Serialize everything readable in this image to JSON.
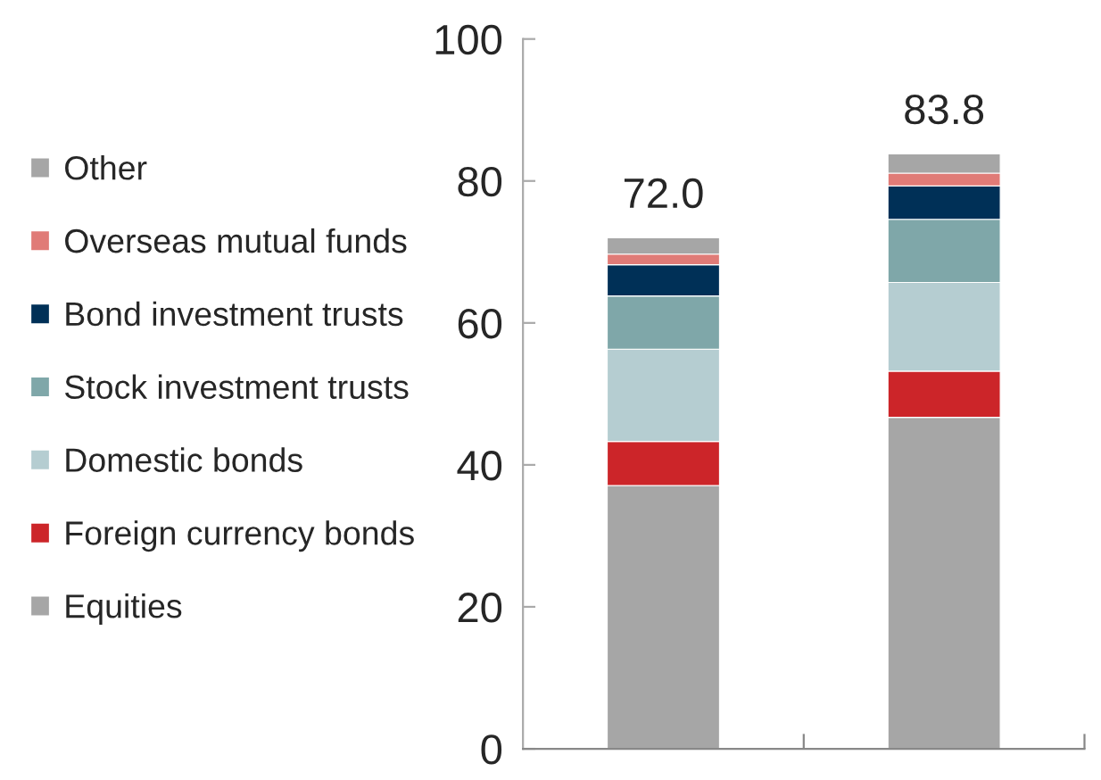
{
  "chart_data": {
    "type": "bar",
    "stacked": true,
    "categories": [
      null,
      null
    ],
    "series": [
      {
        "name": "Equities",
        "color": "#a6a6a6",
        "values": [
          37.1,
          46.7
        ]
      },
      {
        "name": "Foreign currency bonds",
        "color": "#cc2529",
        "values": [
          6.2,
          6.5
        ]
      },
      {
        "name": "Domestic bonds",
        "color": "#b5cdd1",
        "values": [
          13.0,
          12.5
        ]
      },
      {
        "name": "Stock investment trusts",
        "color": "#7fa7a9",
        "values": [
          7.5,
          8.9
        ]
      },
      {
        "name": "Bond investment trusts",
        "color": "#003057",
        "values": [
          4.4,
          4.7
        ]
      },
      {
        "name": "Overseas mutual funds",
        "color": "#e07b77",
        "values": [
          1.5,
          1.8
        ]
      },
      {
        "name": "Other",
        "color": "#a6a6a6",
        "values": [
          2.3,
          2.7
        ]
      }
    ],
    "totals": [
      "72.0",
      "83.8"
    ],
    "ylim": [
      0,
      100
    ],
    "yticks": [
      0,
      20,
      40,
      60,
      80,
      100
    ],
    "grid": false,
    "legend": "left"
  }
}
